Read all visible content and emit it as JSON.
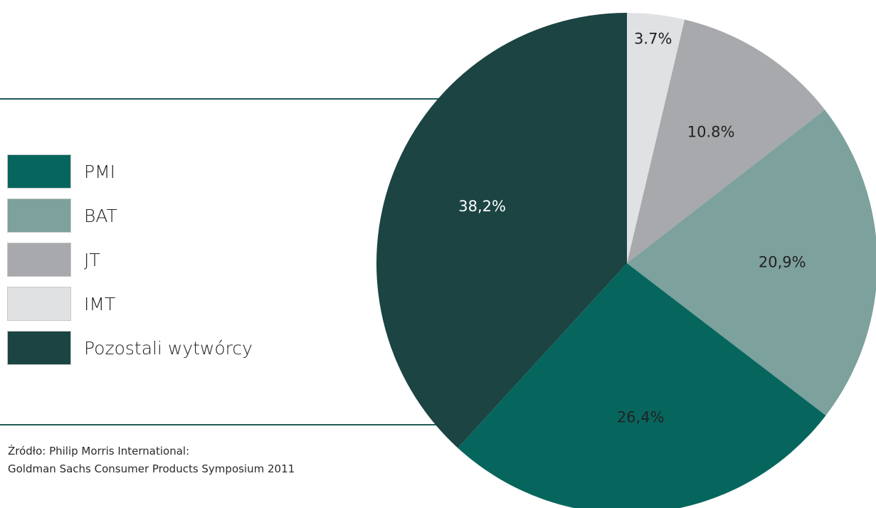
{
  "chart_data": {
    "type": "pie",
    "slices": [
      {
        "name": "IMT",
        "value": 3.7,
        "label": "3.7%",
        "color": "#dfe1e2",
        "label_color": "#222222"
      },
      {
        "name": "JT",
        "value": 10.8,
        "label": "10.8%",
        "color": "#a7a9ac",
        "label_color": "#222222"
      },
      {
        "name": "BAT",
        "value": 20.9,
        "label": "20,9%",
        "color": "#7da19d",
        "label_color": "#222222"
      },
      {
        "name": "PMI",
        "value": 26.4,
        "label": "26,4%",
        "color": "#06665e",
        "label_color": "#222222"
      },
      {
        "name": "Pozostali wytwórcy",
        "value": 38.2,
        "label": "38,2%",
        "color": "#1b4443",
        "label_color": "#ffffff"
      }
    ],
    "legend": [
      {
        "name": "PMI",
        "color": "#06665e"
      },
      {
        "name": "BAT",
        "color": "#7da19d"
      },
      {
        "name": "JT",
        "color": "#a7a9ac"
      },
      {
        "name": "IMT",
        "color": "#dfe1e2"
      },
      {
        "name": "Pozostali wytwórcy",
        "color": "#1b4443"
      }
    ],
    "legend_placement": "left"
  },
  "source": {
    "line1": "Źródło: Philip Morris International:",
    "line2": "Goldman Sachs Consumer Products Symposium 2011"
  }
}
